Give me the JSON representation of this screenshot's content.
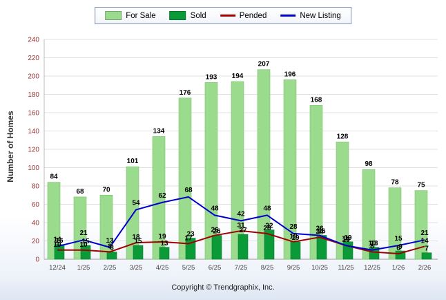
{
  "chart_data": {
    "type": "bar",
    "title": "",
    "categories": [
      "12/24",
      "1/25",
      "2/25",
      "3/25",
      "4/25",
      "5/25",
      "6/25",
      "7/25",
      "8/25",
      "9/25",
      "10/25",
      "11/25",
      "12/25",
      "1/26",
      "2/26"
    ],
    "series": [
      {
        "name": "For Sale",
        "kind": "bar",
        "color": "#9BDB8D",
        "edge": "#79c06d",
        "values": [
          84,
          68,
          70,
          101,
          134,
          176,
          193,
          194,
          207,
          196,
          168,
          128,
          98,
          78,
          75
        ]
      },
      {
        "name": "Sold",
        "kind": "bar",
        "color": "#0A9B38",
        "edge": "#067a2a",
        "values": [
          16,
          15,
          8,
          15,
          13,
          23,
          26,
          27,
          32,
          19,
          26,
          19,
          13,
          9,
          7
        ]
      },
      {
        "name": "Pended",
        "kind": "line",
        "color": "#A00000",
        "values": [
          10,
          10,
          8,
          18,
          19,
          17,
          26,
          31,
          28,
          19,
          24,
          15,
          8,
          6,
          14
        ]
      },
      {
        "name": "New Listing",
        "kind": "line",
        "color": "#0000CC",
        "values": [
          14,
          21,
          13,
          54,
          62,
          68,
          48,
          42,
          48,
          28,
          26,
          15,
          10,
          15,
          21
        ]
      }
    ],
    "xlabel": "",
    "ylabel": "Number of Homes",
    "ylim": [
      0,
      240
    ],
    "ytick_interval": 20,
    "grid": true,
    "legend_position": "top",
    "y_tick_color": "#993333",
    "x_tick_color": "#444444",
    "footer": "Copyright © Trendgraphix, Inc."
  }
}
